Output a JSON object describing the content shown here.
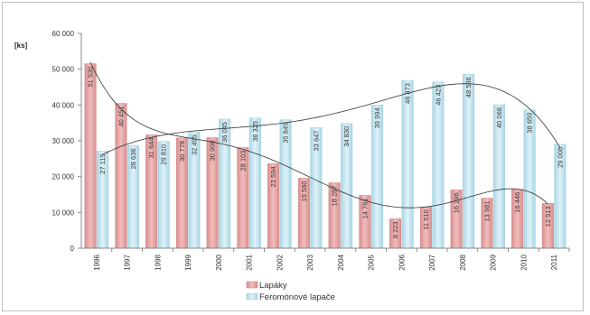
{
  "chart_data": {
    "type": "bar",
    "ylabel": "[ks]",
    "ylim": [
      0,
      60000
    ],
    "yticks": [
      "0",
      "10 000",
      "20 000",
      "30 000",
      "40 000",
      "50 000",
      "60 000"
    ],
    "ytick_values": [
      0,
      10000,
      20000,
      30000,
      40000,
      50000,
      60000
    ],
    "categories": [
      "1996",
      "1997",
      "1998",
      "1999",
      "2000",
      "2001",
      "2002",
      "2003",
      "2004",
      "2005",
      "2006",
      "2007",
      "2008",
      "2009",
      "2010",
      "2011"
    ],
    "series": [
      {
        "name": "Lapáky",
        "color": "#e8a3a3",
        "values": [
          51530,
          40451,
          31644,
          30778,
          30900,
          28103,
          23594,
          19560,
          18287,
          14761,
          8223,
          11510,
          16296,
          13981,
          16446,
          12513
        ],
        "labels": [
          "51 530",
          "40 451",
          "31 644",
          "30 778",
          "30 900",
          "28 103",
          "23 594",
          "19 560",
          "18 287",
          "14 761",
          "8 223",
          "11 510",
          "16 296",
          "13 981",
          "16 446",
          "12 513"
        ]
      },
      {
        "name": "Feromónové lapače",
        "color": "#bfe3ef",
        "values": [
          27119,
          28636,
          29810,
          32495,
          36045,
          36325,
          35849,
          33647,
          34830,
          39994,
          46873,
          46423,
          48586,
          40068,
          38659,
          29008
        ],
        "labels": [
          "27 119",
          "28 636",
          "29 810",
          "32 495",
          "36 045",
          "36 325",
          "35 849",
          "33 647",
          "34 830",
          "39 994",
          "46 873",
          "46 423",
          "48 586",
          "40 068",
          "38 659",
          "29 008"
        ]
      }
    ],
    "trendlines": true,
    "grid": false,
    "legend_position": "bottom"
  }
}
